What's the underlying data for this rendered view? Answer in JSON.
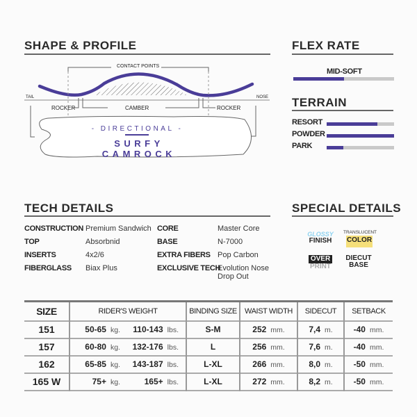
{
  "shape_profile": {
    "title": "SHAPE & PROFILE",
    "contact_points": "CONTACT POINTS",
    "tail": "TAIL",
    "nose": "NOSE",
    "rocker_left": "ROCKER",
    "camber": "CAMBER",
    "rocker_right": "ROCKER",
    "shape": "- DIRECTIONAL -",
    "profile": "SURFY CAMROCK"
  },
  "flex": {
    "title": "FLEX RATE",
    "value_label": "MID-SOFT",
    "level": 0.5
  },
  "terrain": {
    "title": "TERRAIN",
    "items": [
      {
        "label": "RESORT",
        "level": 0.75
      },
      {
        "label": "POWDER",
        "level": 1.0
      },
      {
        "label": "PARK",
        "level": 0.25
      }
    ]
  },
  "tech": {
    "title": "TECH DETAILS",
    "left": [
      {
        "k": "CONSTRUCTION",
        "v": "Premium Sandwich"
      },
      {
        "k": "TOP",
        "v": "Absorbnid"
      },
      {
        "k": "INSERTS",
        "v": "4x2/6"
      },
      {
        "k": "FIBERGLASS",
        "v": "Biax Plus"
      }
    ],
    "right": [
      {
        "k": "CORE",
        "v": "Master Core"
      },
      {
        "k": "BASE",
        "v": "N-7000"
      },
      {
        "k": "EXTRA FIBERS",
        "v": "Pop Carbon"
      },
      {
        "k": "EXCLUSIVE TECH",
        "v": "Evolution Nose Drop Out"
      }
    ]
  },
  "special": {
    "title": "SPECIAL DETAILS",
    "glossy": "GLOSSY",
    "finish": "FINISH",
    "translucent": "TRANSLUCENT",
    "color": "COLOR",
    "over": "OVER",
    "print": "PRINT",
    "diecut": "DIECUT",
    "base": "BASE"
  },
  "colors": {
    "accent": "#4a3d98",
    "bar_bg": "#c9c9c9"
  },
  "table": {
    "headers": [
      "SIZE",
      "RIDER'S WEIGHT",
      "BINDING SIZE",
      "WAIST WIDTH",
      "SIDECUT",
      "SETBACK"
    ],
    "rows": [
      {
        "size": "151",
        "kg": "50-65",
        "lbs": "110-143",
        "binding": "S-M",
        "waist": "252",
        "sidecut": "7,4",
        "setback": "-40"
      },
      {
        "size": "157",
        "kg": "60-80",
        "lbs": "132-176",
        "binding": "L",
        "waist": "256",
        "sidecut": "7,6",
        "setback": "-40"
      },
      {
        "size": "162",
        "kg": "65-85",
        "lbs": "143-187",
        "binding": "L-XL",
        "waist": "266",
        "sidecut": "8,0",
        "setback": "-50"
      },
      {
        "size": "165 W",
        "kg": "75+",
        "lbs": "165+",
        "binding": "L-XL",
        "waist": "272",
        "sidecut": "8,2",
        "setback": "-50"
      }
    ],
    "units": {
      "kg": "kg.",
      "lbs": "lbs.",
      "mm": "mm.",
      "m": "m."
    }
  }
}
